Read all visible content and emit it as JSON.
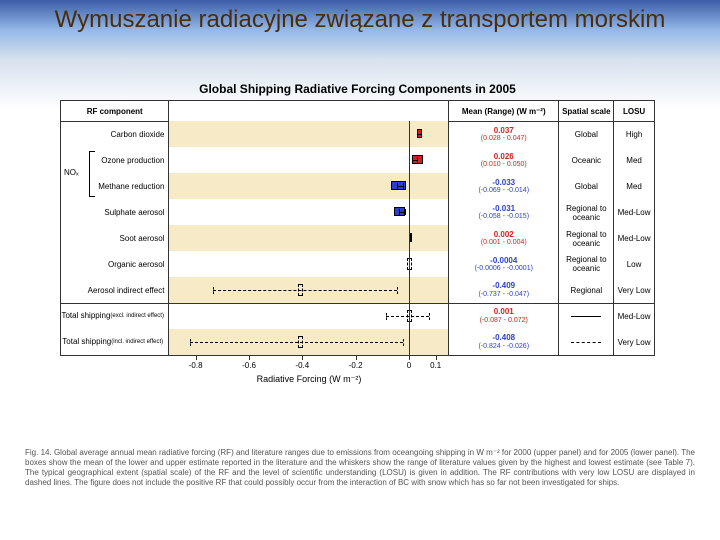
{
  "slide_title": "Wymuszanie radiacyjne związane z transportem morskim",
  "chart_title": "Global Shipping Radiative Forcing Components in 2005",
  "headers": {
    "rf": "RF component",
    "mean": "Mean (Range) (W m⁻²)",
    "spat": "Spatial scale",
    "losu": "LOSU"
  },
  "xaxis": {
    "label": "Radiative Forcing (W m⁻²)",
    "min": -0.9,
    "max": 0.15,
    "ticks": [
      -0.8,
      -0.6,
      -0.4,
      -0.2,
      0,
      0.1
    ]
  },
  "colors": {
    "pos": "#d32020",
    "neg": "#2a3fd0",
    "stripe": "#f7ebc7",
    "title": "#4a2d0a"
  },
  "rows": [
    {
      "label": "Carbon dioxide",
      "mean": 0.037,
      "lo": 0.028,
      "hi": 0.047,
      "wlo": 0.028,
      "whi": 0.047,
      "color": "#d32020",
      "mtxt": "0.037",
      "rng": "(0.028 - 0.047)",
      "mcolor": "#d32020",
      "spat": "Global",
      "losu": "High",
      "stripe": true
    },
    {
      "label": "Ozone production",
      "mean": 0.026,
      "lo": 0.01,
      "hi": 0.05,
      "wlo": 0.009,
      "whi": 0.032,
      "color": "#d32020",
      "mtxt": "0.026",
      "rng": "(0.010 - 0.050)",
      "mcolor": "#d32020",
      "spat": "Oceanic",
      "losu": "Med",
      "stripe": false,
      "nox": true
    },
    {
      "label": "Methane reduction",
      "mean": -0.033,
      "lo": -0.069,
      "hi": -0.014,
      "wlo": -0.045,
      "whi": -0.02,
      "color": "#2a3fd0",
      "mtxt": "-0.033",
      "rng": "(-0.069 - -0.014)",
      "mcolor": "#2a3fd0",
      "spat": "Global",
      "losu": "Med",
      "stripe": true,
      "nox": true
    },
    {
      "label": "Sulphate aerosol",
      "mean": -0.031,
      "lo": -0.058,
      "hi": -0.015,
      "wlo": -0.04,
      "whi": -0.014,
      "color": "#2a3fd0",
      "mtxt": "-0.031",
      "rng": "(-0.058 - -0.015)",
      "mcolor": "#2a3fd0",
      "spat": "Regional to oceanic",
      "losu": "Med-Low",
      "stripe": false
    },
    {
      "label": "Soot aerosol",
      "mean": 0.002,
      "lo": 0.001,
      "hi": 0.004,
      "wlo": 0.001,
      "whi": 0.004,
      "color": "#d32020",
      "mtxt": "0.002",
      "rng": "(0.001 - 0.004)",
      "mcolor": "#d32020",
      "spat": "Regional to oceanic",
      "losu": "Med-Low",
      "stripe": true
    },
    {
      "label": "Organic aerosol",
      "mean": -0.0004,
      "lo": -0.0006,
      "hi": -0.0001,
      "dashed": true,
      "mtxt": "-0.0004",
      "rng": "(-0.0006 - -0.0001)",
      "mcolor": "#2a3fd0",
      "spat": "Regional to oceanic",
      "losu": "Low",
      "stripe": false
    },
    {
      "label": "Aerosol indirect effect",
      "mean": -0.409,
      "lo": -0.737,
      "hi": -0.047,
      "dashed": true,
      "mtxt": "-0.409",
      "rng": "(-0.737 - -0.047)",
      "mcolor": "#2a3fd0",
      "spat": "Regional",
      "losu": "Very Low",
      "stripe": true
    },
    {
      "sep": true
    },
    {
      "label": "Total shipping",
      "sub": "(excl. indirect effect)",
      "mean": 0.001,
      "lo": -0.087,
      "hi": 0.072,
      "dashed": true,
      "mtxt": "0.001",
      "rng": "(-0.087 - 0.072)",
      "mcolor": "#d32020",
      "spat": "legend-solid",
      "losu": "Med-Low",
      "stripe": false
    },
    {
      "label": "Total shipping",
      "sub": "(incl. indirect effect)",
      "mean": -0.408,
      "lo": -0.824,
      "hi": -0.026,
      "dashed": true,
      "mtxt": "-0.408",
      "rng": "(-0.824 - -0.026)",
      "mcolor": "#2a3fd0",
      "spat": "legend-dash",
      "losu": "Very Low",
      "stripe": true
    }
  ],
  "nox_label": "NOₓ",
  "caption": "Fig. 14. Global average annual mean radiative forcing (RF) and literature ranges due to emissions from oceangoing shipping in W m⁻² for 2000 (upper panel) and for 2005 (lower panel). The boxes show the mean of the lower and upper estimate reported in the literature and the whiskers show the range of literature values given by the highest and lowest estimate (see Table 7). The typical geographical extent (spatial scale) of the RF and the level of scientific understanding (LOSU) is given in addition. The RF contributions with very low LOSU are displayed in dashed lines. The figure does not include the positive RF that could possibly occur from the interaction of BC with snow which has so far not been investigated for ships."
}
